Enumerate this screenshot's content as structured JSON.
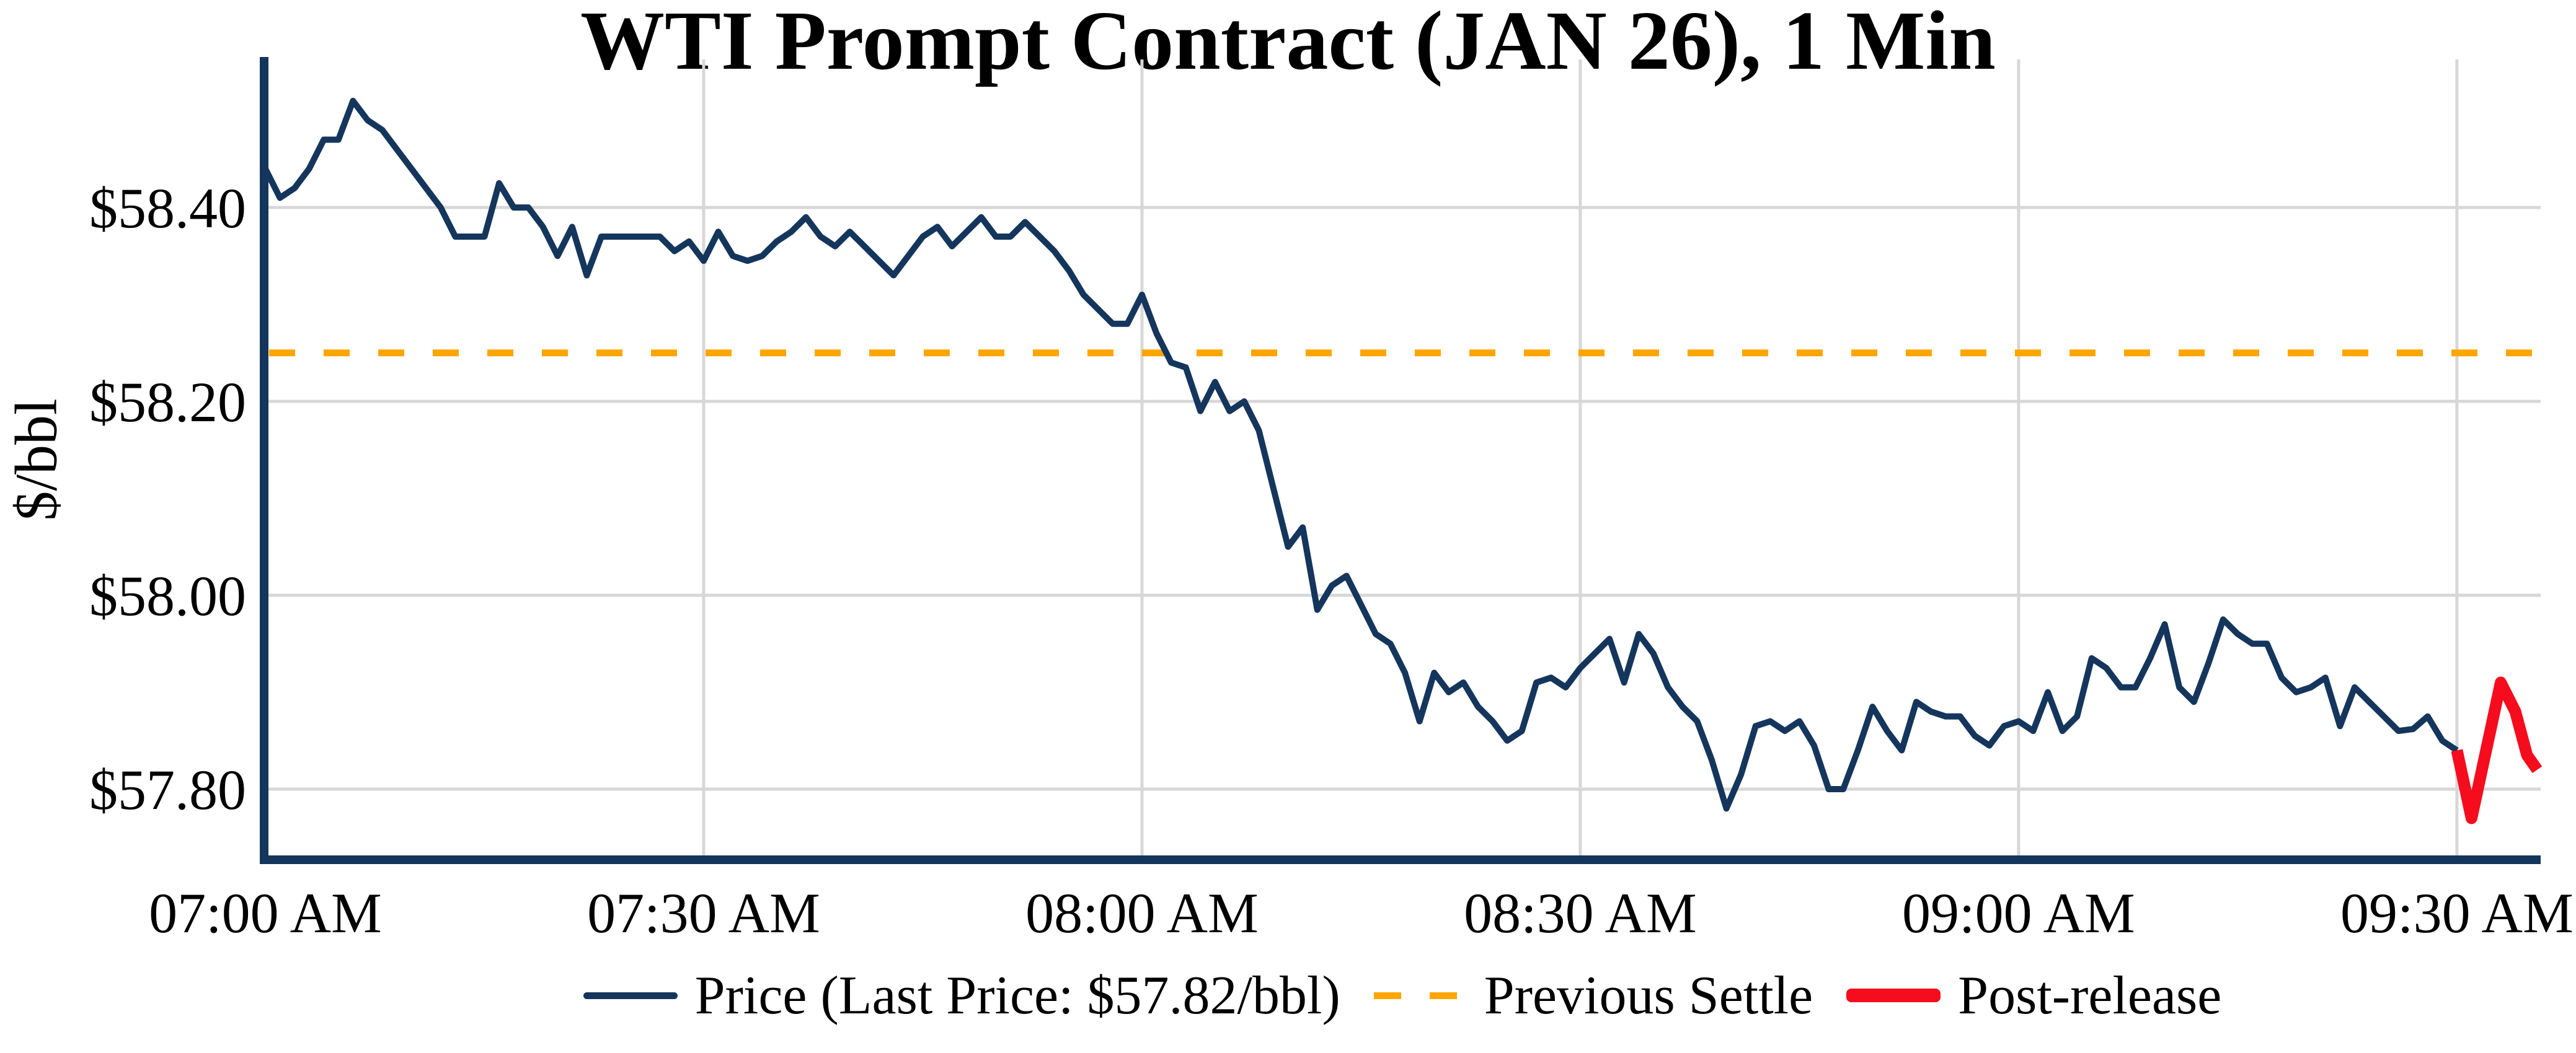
{
  "title": "WTI Prompt Contract (JAN 26), 1 Min",
  "y_axis_label": "$/bbl",
  "colors": {
    "price_navy": "#15365c",
    "settle_orange": "#ffa500",
    "post_release_red": "#f50d1d",
    "grid_gray": "#d7d7d7",
    "background": "#ffffff",
    "text": "#000000"
  },
  "chart_data": {
    "type": "line",
    "title": "WTI Prompt Contract (JAN 26), 1 Min",
    "xlabel": "",
    "ylabel": "$/bbl",
    "grid": true,
    "legend_position": "lower center",
    "ylim": [
      57.73,
      58.55
    ],
    "x_range": [
      "07:00 AM",
      "09:36 AM"
    ],
    "interval": "1 Min",
    "last_price": 57.82,
    "previous_settle": 58.25,
    "x_ticks": [
      {
        "minute": 0,
        "label": "07:00 AM"
      },
      {
        "minute": 30,
        "label": "07:30 AM"
      },
      {
        "minute": 60,
        "label": "08:00 AM"
      },
      {
        "minute": 90,
        "label": "08:30 AM"
      },
      {
        "minute": 120,
        "label": "09:00 AM"
      },
      {
        "minute": 150,
        "label": "09:30 AM"
      }
    ],
    "y_ticks": [
      {
        "value": 57.8,
        "label": "$57.80"
      },
      {
        "value": 58.0,
        "label": "$58.00"
      },
      {
        "value": 58.2,
        "label": "$58.20"
      },
      {
        "value": 58.4,
        "label": "$58.40"
      }
    ],
    "reference_lines": [
      {
        "name": "Previous Settle",
        "value": 58.25,
        "color": "#ffa500",
        "style": "dashed"
      }
    ],
    "series": [
      {
        "name": "Price",
        "color": "#15365c",
        "stroke_width": 10,
        "start_minute": 0,
        "step_minutes": 1,
        "values": [
          58.44,
          58.41,
          58.42,
          58.44,
          58.47,
          58.47,
          58.51,
          58.49,
          58.48,
          58.46,
          58.44,
          58.42,
          58.4,
          58.37,
          58.37,
          58.37,
          58.425,
          58.4,
          58.4,
          58.38,
          58.35,
          58.38,
          58.33,
          58.37,
          58.37,
          58.37,
          58.37,
          58.37,
          58.355,
          58.365,
          58.345,
          58.375,
          58.35,
          58.345,
          58.35,
          58.365,
          58.375,
          58.39,
          58.37,
          58.36,
          58.375,
          58.36,
          58.345,
          58.33,
          58.35,
          58.37,
          58.38,
          58.36,
          58.375,
          58.39,
          58.37,
          58.37,
          58.385,
          58.37,
          58.355,
          58.335,
          58.31,
          58.295,
          58.28,
          58.28,
          58.31,
          58.27,
          58.24,
          58.235,
          58.19,
          58.22,
          58.19,
          58.2,
          58.17,
          58.11,
          58.05,
          58.07,
          57.985,
          58.01,
          58.02,
          57.99,
          57.96,
          57.95,
          57.92,
          57.87,
          57.92,
          57.9,
          57.91,
          57.885,
          57.87,
          57.85,
          57.86,
          57.91,
          57.915,
          57.905,
          57.925,
          57.94,
          57.955,
          57.91,
          57.96,
          57.94,
          57.905,
          57.885,
          57.87,
          57.83,
          57.78,
          57.815,
          57.865,
          57.87,
          57.86,
          57.87,
          57.845,
          57.8,
          57.8,
          57.84,
          57.885,
          57.86,
          57.84,
          57.89,
          57.88,
          57.875,
          57.875,
          57.855,
          57.845,
          57.865,
          57.87,
          57.86,
          57.9,
          57.86,
          57.875,
          57.935,
          57.925,
          57.905,
          57.905,
          57.935,
          57.97,
          57.905,
          57.89,
          57.93,
          57.975,
          57.96,
          57.95,
          57.95,
          57.915,
          57.9,
          57.905,
          57.915,
          57.865,
          57.905,
          57.89,
          57.875,
          57.86,
          57.862,
          57.875,
          57.85,
          57.84
        ]
      },
      {
        "name": "Post-release",
        "color": "#f50d1d",
        "stroke_width": 19,
        "minutes": [
          150,
          151,
          152,
          153,
          154,
          154.8,
          155.5
        ],
        "values": [
          57.84,
          57.77,
          57.84,
          57.91,
          57.88,
          57.835,
          57.82
        ]
      }
    ],
    "legend": [
      {
        "label": "Price (Last Price: $57.82/bbl)",
        "color": "#15365c",
        "style": "solid"
      },
      {
        "label": "Previous Settle",
        "color": "#ffa500",
        "style": "dashed"
      },
      {
        "label": "Post-release",
        "color": "#f50d1d",
        "style": "thick-solid"
      }
    ]
  }
}
